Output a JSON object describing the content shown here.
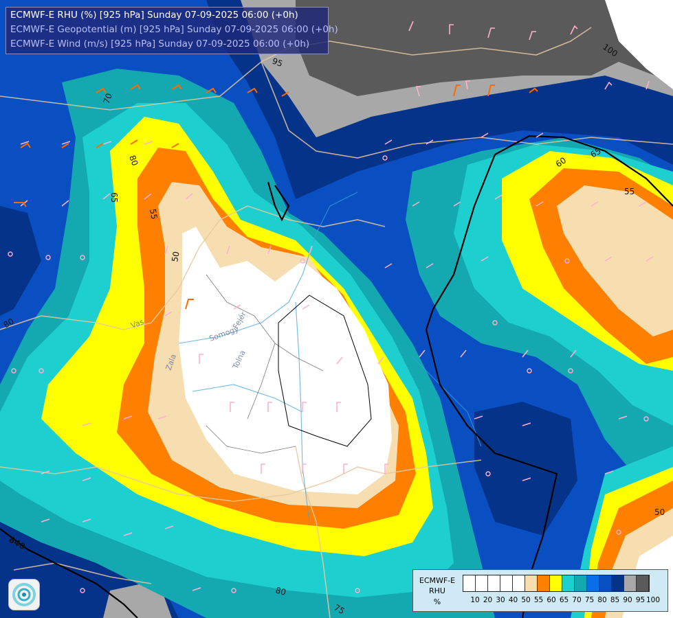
{
  "titles": {
    "line1": "ECMWF-E RHU (%) [925 hPa] Sunday 07-09-2025 06:00 (+0h)",
    "line2": "ECMWF-E Geopotential (m) [925 hPa] Sunday 07-09-2025 06:00 (+0h)",
    "line3": "ECMWF-E Wind (m/s) [925 hPa] Sunday 07-09-2025 06:00 (+0h)"
  },
  "title_colors": {
    "line1": "#ffffff",
    "line2": "#b8bfff",
    "line3": "#b8bfff"
  },
  "contour_labels": {
    "c100": "100",
    "c95": "95",
    "c70": "70",
    "c80a": "80",
    "c65": "65",
    "c55a": "55",
    "c50a": "50",
    "c60": "60",
    "c65b": "65",
    "c55b": "55",
    "c80b": "80",
    "c80c": "80",
    "c75": "75",
    "c50b": "50",
    "c840": "840"
  },
  "place_labels": {
    "vas": "Vas",
    "zala": "Zala",
    "somogy": "Somogy",
    "tolna": "Tolna",
    "fejer": "Fejér"
  },
  "legend": {
    "name_line1": "ECMWF-E",
    "name_line2": "RHU",
    "name_line3": "%",
    "ticks": [
      "10",
      "20",
      "30",
      "40",
      "50",
      "55",
      "60",
      "65",
      "70",
      "75",
      "80",
      "85",
      "90",
      "95",
      "100"
    ],
    "colors": [
      "#ffffff",
      "#ffffff",
      "#ffffff",
      "#ffffff",
      "#ffffff",
      "#f7deb0",
      "#ff8000",
      "#ffff00",
      "#1ecfd0",
      "#14a8b0",
      "#0a6fe6",
      "#0a4fc2",
      "#06338a",
      "#a8a8a8",
      "#5a5a5a"
    ]
  },
  "logo_icon": "swirl-logo-icon"
}
